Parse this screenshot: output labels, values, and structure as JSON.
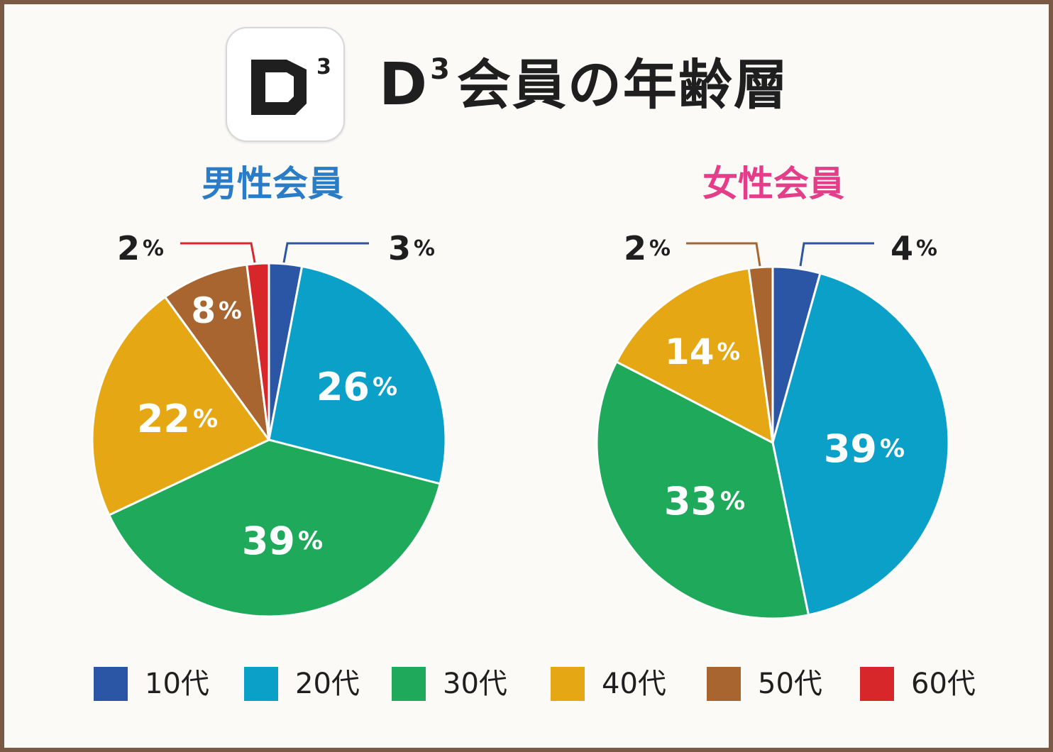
{
  "logo": {
    "letter": "D",
    "superscript": "3"
  },
  "title": {
    "letter": "D",
    "superscript": "3",
    "rest": "会員の年齢層"
  },
  "chart_data": [
    {
      "type": "pie",
      "title": "男性会員",
      "categories": [
        "10代",
        "20代",
        "30代",
        "40代",
        "50代",
        "60代"
      ],
      "values": [
        3,
        26,
        39,
        22,
        8,
        2
      ],
      "labels": [
        "3",
        "26",
        "39",
        "22",
        "8",
        "2"
      ],
      "unit": "%"
    },
    {
      "type": "pie",
      "title": "女性会員",
      "categories": [
        "10代",
        "20代",
        "30代",
        "40代",
        "50代"
      ],
      "values": [
        4,
        39,
        33,
        14,
        2
      ],
      "labels": [
        "4",
        "39",
        "33",
        "14",
        "2"
      ],
      "unit": "%"
    }
  ],
  "legend": {
    "placement": "bottom",
    "items": [
      {
        "label": "10代",
        "color": "#2b56a6"
      },
      {
        "label": "20代",
        "color": "#0aa0c8"
      },
      {
        "label": "30代",
        "color": "#1faa5b"
      },
      {
        "label": "40代",
        "color": "#e6a714"
      },
      {
        "label": "50代",
        "color": "#a8652f"
      },
      {
        "label": "60代",
        "color": "#d8272b"
      }
    ]
  },
  "colors": {
    "male_title": "#2a7cc6",
    "female_title": "#e43d8a",
    "frame": "#7a5a45",
    "text": "#1f1f1f"
  }
}
